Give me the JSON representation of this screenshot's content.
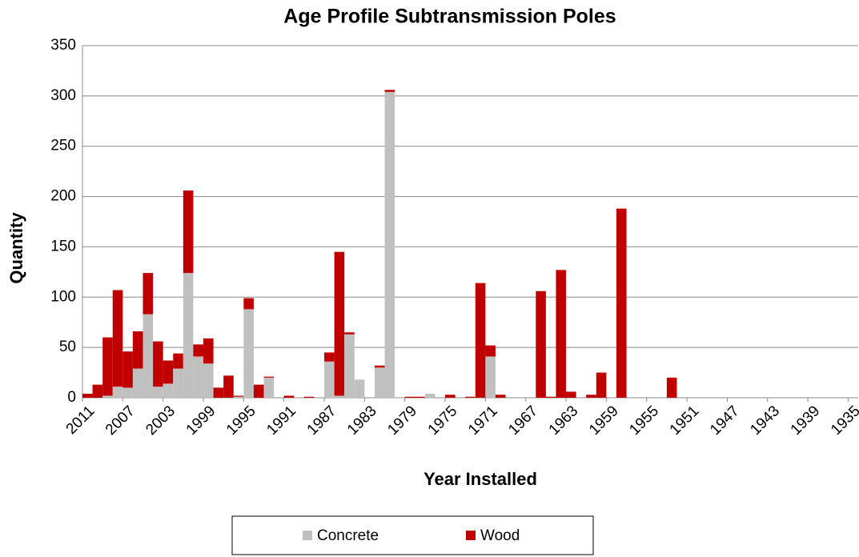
{
  "chart_data": {
    "type": "stacked_bar",
    "title": "Age Profile Subtransmission Poles",
    "x_label": "Year Installed",
    "y_label": "Quantity",
    "categories": [
      "2011",
      null,
      null,
      null,
      "2007",
      null,
      null,
      null,
      "2003",
      null,
      null,
      null,
      "1999",
      null,
      null,
      null,
      "1995",
      null,
      null,
      null,
      "1991",
      null,
      null,
      null,
      "1987",
      null,
      null,
      null,
      "1983",
      null,
      null,
      null,
      "1979",
      null,
      null,
      null,
      "1975",
      null,
      null,
      null,
      "1971",
      null,
      null,
      null,
      "1967",
      null,
      null,
      null,
      "1963",
      null,
      null,
      null,
      "1959",
      null,
      null,
      null,
      "1955",
      null,
      null,
      null,
      "1951",
      null,
      null,
      null,
      "1947",
      null,
      null,
      null,
      "1943",
      null,
      null,
      null,
      "1939",
      null,
      null,
      null,
      "1935"
    ],
    "series": [
      {
        "name": "Concrete",
        "color": "#c0c0c0",
        "values": [
          0,
          0,
          2,
          11,
          10,
          29,
          83,
          11,
          14,
          29,
          124,
          41,
          34,
          0,
          0,
          1,
          88,
          0,
          20,
          0,
          0,
          0,
          0,
          0,
          36,
          2,
          63,
          18,
          0,
          30,
          304,
          0,
          0,
          0,
          4,
          0,
          0,
          0,
          0,
          0,
          41,
          0,
          0,
          0,
          0,
          0,
          0,
          0,
          0,
          0,
          0,
          0,
          0,
          0,
          0,
          0,
          0,
          0,
          0,
          0,
          0,
          0,
          0,
          0,
          0,
          0,
          0,
          0,
          0,
          0,
          0,
          0,
          0,
          0,
          0,
          0,
          0
        ]
      },
      {
        "name": "Wood",
        "color": "#c00000",
        "values": [
          4,
          13,
          58,
          96,
          36,
          37,
          41,
          45,
          23,
          15,
          82,
          12,
          25,
          10,
          22,
          1,
          11,
          13,
          1,
          0,
          2,
          0,
          1,
          0,
          9,
          143,
          2,
          0,
          0,
          2,
          2,
          0,
          1,
          1,
          0,
          0,
          3,
          0,
          1,
          114,
          11,
          3,
          0,
          0,
          0,
          106,
          1,
          127,
          6,
          0,
          3,
          25,
          0,
          188,
          0,
          0,
          0,
          0,
          20,
          0,
          0,
          0,
          0,
          0,
          0,
          0,
          0,
          0,
          0,
          0,
          0,
          0,
          0,
          0,
          0,
          0,
          0
        ]
      }
    ],
    "ylim": [
      0,
      350
    ],
    "yticks": [
      0,
      50,
      100,
      150,
      200,
      250,
      300,
      350
    ],
    "grid": true,
    "legend": "bottom"
  }
}
